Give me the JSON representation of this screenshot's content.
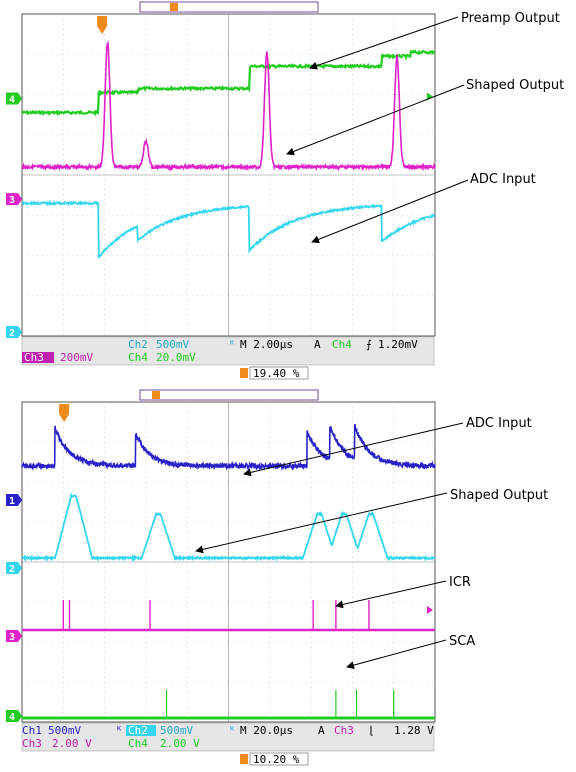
{
  "colors": {
    "background": "#ffffff",
    "grid": "#bdbdbd",
    "frame": "#555555",
    "ch_cyan": "#33d6ee",
    "ch_magenta": "#e020c8",
    "ch_green": "#22cc22",
    "ch_blue": "#2a22c8",
    "trigger": "#ee8a1a",
    "readout_box": "#dcdcdc"
  },
  "chart_data": [
    {
      "type": "line",
      "title": "",
      "time_per_div": "2.00µs",
      "trigger": {
        "mode": "A",
        "source": "Ch4",
        "slope": "rising",
        "level": "1.20mV",
        "position": "19.40 %"
      },
      "series": [
        {
          "name": "Preamp Output",
          "channel": "4",
          "color": "#22cc22",
          "x_div": [
            0,
            1.85,
            1.86,
            2.8,
            2.81,
            5.5,
            5.51,
            8.7,
            8.71,
            9.4,
            9.41,
            10
          ],
          "y_div_from_top": [
            2.45,
            2.45,
            1.95,
            1.95,
            1.85,
            1.85,
            1.3,
            1.3,
            1.05,
            1.05,
            0.95,
            0.95
          ]
        },
        {
          "name": "Shaped Output",
          "channel": "3",
          "color": "#e020c8",
          "baseline_div": 3.8,
          "pulses": [
            {
              "x": 2.07,
              "peak_div": 0.7
            },
            {
              "x": 3.0,
              "peak_div": 3.15
            },
            {
              "x": 5.93,
              "peak_div": 0.95
            },
            {
              "x": 9.08,
              "peak_div": 1.05
            }
          ]
        },
        {
          "name": "ADC Input",
          "channel": "2",
          "color": "#33d6ee",
          "baseline_div": 4.7,
          "steps": [
            {
              "x": 1.85,
              "depth_div": 1.35
            },
            {
              "x": 2.8,
              "depth_div": 0.35
            },
            {
              "x": 5.5,
              "depth_div": 1.1
            },
            {
              "x": 8.7,
              "depth_div": 0.9
            }
          ]
        }
      ],
      "annotations": [
        "Preamp Output",
        "Shaped Output",
        "ADC Input"
      ],
      "readout": {
        "row1": {
          "ch": "Ch2",
          "val": "500mV",
          "tb": "M 2.00µs",
          "trig_mode": "A",
          "trig_src": "Ch4",
          "trig_level": "1.20mV"
        },
        "row2": {
          "ch3": "Ch3",
          "ch3_val": "200mV",
          "ch4": "Ch4",
          "ch4_val": "20.0mV"
        },
        "trig_pos": "19.40 %"
      }
    },
    {
      "type": "line",
      "title": "",
      "time_per_div": "20.0µs",
      "trigger": {
        "mode": "A",
        "source": "Ch3",
        "slope": "falling",
        "level": "1.28 V",
        "position": "10.20 %"
      },
      "series": [
        {
          "name": "ADC Input",
          "channel": "1",
          "color": "#2a22c8",
          "baseline_div": 1.6,
          "spikes": [
            {
              "x": 0.8,
              "peak_div": 0.65
            },
            {
              "x": 2.75,
              "peak_div": 0.8
            },
            {
              "x": 6.9,
              "peak_div": 0.75
            },
            {
              "x": 7.45,
              "peak_div": 0.75
            },
            {
              "x": 8.05,
              "peak_div": 0.75
            }
          ]
        },
        {
          "name": "Shaped Output",
          "channel": "2",
          "color": "#33d6ee",
          "baseline_div": 3.9,
          "bumps": [
            {
              "x": 1.25,
              "height_div": 1.55
            },
            {
              "x": 3.3,
              "height_div": 1.1
            },
            {
              "x": 7.2,
              "height_div": 1.1
            },
            {
              "x": 7.8,
              "height_div": 1.1
            },
            {
              "x": 8.45,
              "height_div": 1.1
            }
          ]
        },
        {
          "name": "ICR",
          "channel": "3",
          "color": "#e020c8",
          "baseline_div": 5.7,
          "lines": [
            {
              "x": 1.0,
              "h_div": 0.75
            },
            {
              "x": 1.15,
              "h_div": 0.75
            },
            {
              "x": 3.1,
              "h_div": 0.75
            },
            {
              "x": 7.05,
              "h_div": 0.75
            },
            {
              "x": 7.6,
              "h_div": 0.75
            },
            {
              "x": 8.4,
              "h_div": 0.75
            }
          ]
        },
        {
          "name": "SCA",
          "channel": "4",
          "color": "#22cc22",
          "baseline_div": 7.9,
          "lines": [
            {
              "x": 3.5,
              "h_div": 0.7
            },
            {
              "x": 7.6,
              "h_div": 0.7
            },
            {
              "x": 8.1,
              "h_div": 0.7
            },
            {
              "x": 9.0,
              "h_div": 0.7
            }
          ]
        }
      ],
      "annotations": [
        "ADC Input",
        "Shaped Output",
        "ICR",
        "SCA"
      ],
      "readout": {
        "row1": {
          "ch1": "Ch1",
          "ch1_val": "500mV",
          "ch2": "Ch2",
          "ch2_val": "500mV",
          "tb": "M 20.0µs",
          "trig_mode": "A",
          "trig_src": "Ch3",
          "trig_level": "1.28 V"
        },
        "row2": {
          "ch3": "Ch3",
          "ch3_val": "2.00 V",
          "ch4": "Ch4",
          "ch4_val": "2.00 V"
        },
        "trig_pos": "10.20 %"
      }
    }
  ]
}
